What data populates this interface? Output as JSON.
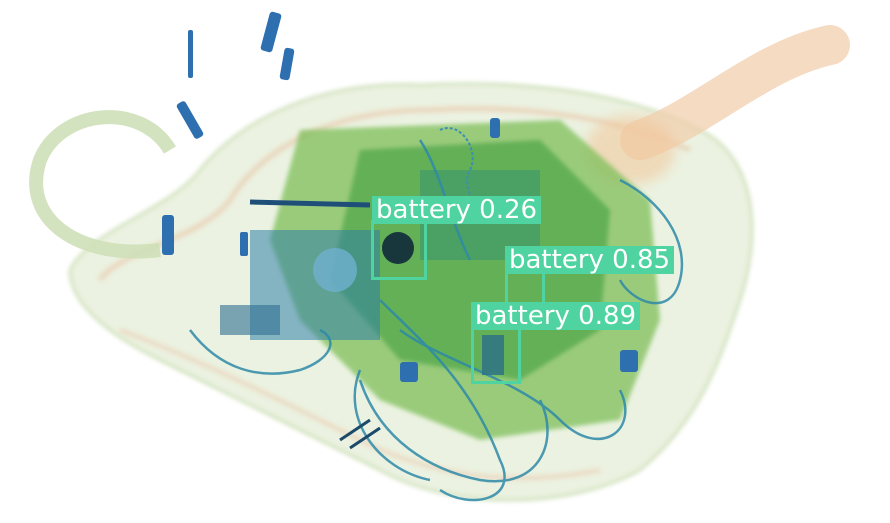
{
  "image": {
    "subject": "x-ray scan of a bag",
    "box_color": "#4fd3a0",
    "detections": [
      {
        "label": "battery 0.26",
        "class": "battery",
        "score": 0.26
      },
      {
        "label": "battery 0.85",
        "class": "battery",
        "score": 0.85
      },
      {
        "label": "battery 0.89",
        "class": "battery",
        "score": 0.89
      }
    ]
  }
}
